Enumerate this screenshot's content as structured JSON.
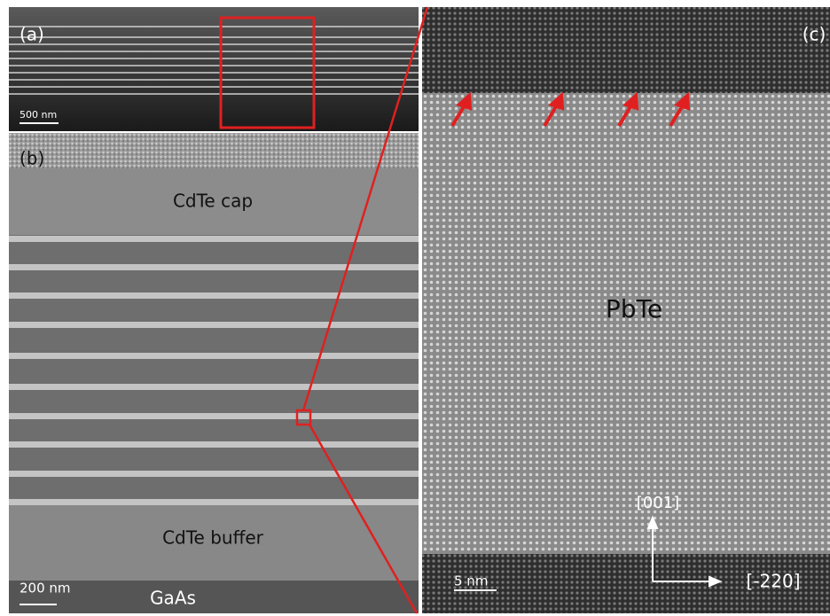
{
  "panels": [
    {
      "label": "(a)",
      "scale_bar": "500 nm"
    },
    {
      "label": "(b)",
      "scale_bar": "200 nm",
      "regions": [
        "CdTe cap",
        "CdTe buffer",
        "GaAs"
      ]
    },
    {
      "label": "(c)",
      "scale_bar": "5 nm",
      "regions": [
        "PbTe"
      ],
      "directions": [
        "[001]",
        "[-220]"
      ]
    }
  ]
}
